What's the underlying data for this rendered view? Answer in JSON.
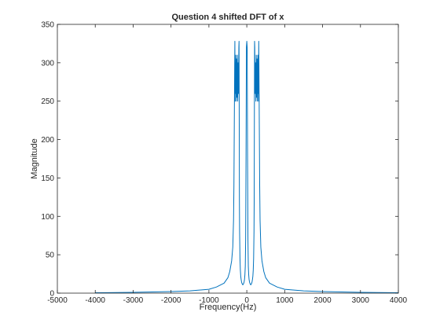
{
  "chart_data": {
    "type": "line",
    "title": "Question 4 shifted DFT of x",
    "xlabel": "Frequency(Hz)",
    "ylabel": "Magnitude",
    "xlim": [
      -5000,
      4000
    ],
    "ylim": [
      0,
      350
    ],
    "xticks": [
      -5000,
      -4000,
      -3000,
      -2000,
      -1000,
      0,
      1000,
      2000,
      3000,
      4000
    ],
    "yticks": [
      0,
      50,
      100,
      150,
      200,
      250,
      300,
      350
    ],
    "grid": false,
    "line_color": "#0072BD",
    "series": [
      {
        "x": [
          -4000,
          -3000,
          -2000,
          -1500,
          -1000,
          -800,
          -600,
          -500,
          -450,
          -400,
          -370,
          -350,
          -340,
          -330,
          -320,
          -315,
          -310,
          -305,
          -300,
          -290,
          -280,
          -270,
          -260,
          -250,
          -240,
          -230,
          -220,
          -210,
          -205,
          -200,
          -195,
          -190,
          -180,
          -170,
          -160,
          -150,
          -140,
          -130,
          -120,
          -110,
          -100,
          -90,
          -80,
          -70,
          -60,
          -50,
          -40,
          -30,
          -20,
          -10,
          0,
          10,
          20,
          30,
          40,
          50,
          60,
          70,
          80,
          90,
          100,
          110,
          120,
          130,
          140,
          150,
          160,
          170,
          180,
          190,
          195,
          200,
          205,
          210,
          220,
          230,
          240,
          250,
          260,
          270,
          280,
          290,
          300,
          305,
          310,
          315,
          320,
          330,
          340,
          350,
          370,
          400,
          450,
          500,
          600,
          800,
          1000,
          1500,
          2000,
          3000,
          4000
        ],
        "y": [
          0.5,
          1,
          2,
          3,
          5,
          8,
          13,
          20,
          28,
          42,
          60,
          95,
          140,
          220,
          300,
          328,
          250,
          300,
          260,
          310,
          250,
          305,
          255,
          310,
          250,
          300,
          260,
          320,
          328,
          230,
          120,
          80,
          45,
          30,
          22,
          18,
          15,
          13,
          12,
          11,
          11,
          12,
          13,
          15,
          18,
          24,
          35,
          70,
          180,
          320,
          328,
          320,
          180,
          70,
          35,
          24,
          18,
          15,
          13,
          12,
          11,
          11,
          12,
          13,
          15,
          18,
          22,
          30,
          45,
          80,
          120,
          230,
          328,
          320,
          260,
          300,
          250,
          310,
          255,
          305,
          250,
          310,
          260,
          300,
          250,
          328,
          300,
          220,
          140,
          95,
          60,
          42,
          28,
          20,
          13,
          8,
          5,
          3,
          2,
          1,
          0.5
        ]
      }
    ]
  }
}
